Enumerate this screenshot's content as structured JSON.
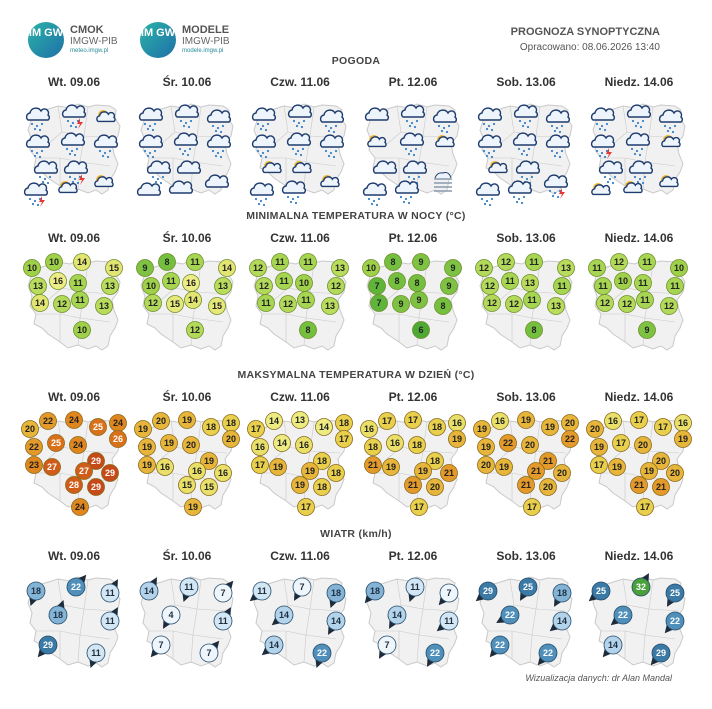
{
  "header": {
    "logo1": {
      "title": "CMOK",
      "sub": "IMGW-PIB",
      "url": "meteo.imgw.pl",
      "mark": "IM GW"
    },
    "logo2": {
      "title": "MODELE",
      "sub": "IMGW-PIB",
      "url": "modele.imgw.pl",
      "mark": "IM GW"
    },
    "title": "PROGNOZA SYNOPTYCZNA",
    "prepared": "Opracowano: 08.06.2026 13:40"
  },
  "days": [
    "Wt. 09.06",
    "Śr. 10.06",
    "Czw. 11.06",
    "Pt. 12.06",
    "Sob. 13.06",
    "Niedz. 14.06"
  ],
  "sections": {
    "weather": "POGODA",
    "tmin": "MINIMALNA TEMPERATURA W NOCY (°C)",
    "tmax": "MAKSYMALNA TEMPERATURA W DZIEŃ (°C)",
    "wind": "WIATR (km/h)"
  },
  "colors": {
    "map_fill": "#f1f1f1",
    "map_border": "#c9c9c9",
    "cloud_fill": "#eef4fb",
    "cloud_stroke": "#1f3c6e",
    "rain": "#3a82c9",
    "sun": "#f3b429",
    "lightning": "#e53935"
  },
  "weather_icons": [
    [
      "cloud-rain",
      "cloud-rain-lightning",
      "partly-cloudy",
      "cloud-rain",
      "cloud-sun-rain",
      "cloud-rain",
      "cloud-rain",
      "cloud-rain-lightning",
      "cloud-rain-lightning",
      "partly-cloudy",
      "cloud-sun"
    ],
    [
      "cloud-rain",
      "cloud-rain",
      "cloud-rain",
      "cloud-rain",
      "cloud-rain",
      "cloud-rain",
      "cloud-rain",
      "cloud",
      "cloud",
      "cloud",
      "cloud"
    ],
    [
      "cloud-rain",
      "cloud-rain",
      "cloud-rain",
      "cloud-rain",
      "cloud-rain",
      "cloud-rain",
      "partly-cloudy",
      "partly-cloudy",
      "cloud-rain",
      "cloud-rain",
      "cloud-sun"
    ],
    [
      "cloud",
      "cloud-rain",
      "cloud-rain",
      "partly-cloudy",
      "cloud-rain",
      "partly-cloudy",
      "cloud",
      "cloud-rain",
      "cloud-rain",
      "cloud-rain",
      "fog"
    ],
    [
      "cloud-rain",
      "cloud-rain",
      "cloud-rain",
      "cloud-rain",
      "cloud-rain",
      "cloud-rain",
      "partly-cloudy",
      "cloud-rain",
      "cloud-rain",
      "cloud-rain",
      "cloud-rain-lightning"
    ],
    [
      "cloud-rain",
      "cloud-rain",
      "cloud-rain",
      "cloud-rain-lightning",
      "cloud-rain",
      "partly-cloudy",
      "cloud-rain",
      "cloud-rain",
      "partly-cloudy",
      "partly-cloudy",
      "cloud-sun"
    ]
  ],
  "tmin": [
    [
      10,
      10,
      14,
      15,
      13,
      16,
      11,
      13,
      14,
      12,
      11,
      13,
      10
    ],
    [
      9,
      8,
      11,
      14,
      10,
      11,
      16,
      13,
      12,
      15,
      14,
      15,
      12
    ],
    [
      12,
      11,
      11,
      13,
      12,
      11,
      10,
      12,
      11,
      12,
      11,
      13,
      8
    ],
    [
      10,
      8,
      9,
      9,
      7,
      8,
      8,
      9,
      7,
      9,
      9,
      8,
      6
    ],
    [
      12,
      12,
      11,
      13,
      12,
      11,
      13,
      11,
      12,
      12,
      11,
      13,
      8
    ],
    [
      11,
      12,
      11,
      10,
      11,
      10,
      11,
      11,
      12,
      12,
      11,
      12,
      9
    ]
  ],
  "tmin_colors": [
    [
      "#9fd04a",
      "#9fd04a",
      "#e2e572",
      "#e2e572",
      "#b9dc5d",
      "#edec87",
      "#a6d552",
      "#b9dc5d",
      "#e2e572",
      "#b3d95a",
      "#a6d552",
      "#b9dc5d",
      "#9fd04a"
    ],
    [
      "#7dc242",
      "#74bf3e",
      "#a6d552",
      "#e2e572",
      "#9fd04a",
      "#a6d552",
      "#edec87",
      "#b9dc5d",
      "#b3d95a",
      "#e6e87a",
      "#e2e572",
      "#e6e87a",
      "#b3d95a"
    ],
    [
      "#b3d95a",
      "#a6d552",
      "#a6d552",
      "#b9dc5d",
      "#b3d95a",
      "#a6d552",
      "#9fd04a",
      "#b3d95a",
      "#a6d552",
      "#b3d95a",
      "#a6d552",
      "#b9dc5d",
      "#74bf3e"
    ],
    [
      "#9fd04a",
      "#74bf3e",
      "#7dc242",
      "#7dc242",
      "#5fb43a",
      "#74bf3e",
      "#74bf3e",
      "#7dc242",
      "#5fb43a",
      "#7dc242",
      "#7dc242",
      "#74bf3e",
      "#4fa935"
    ],
    [
      "#b3d95a",
      "#b3d95a",
      "#a6d552",
      "#b9dc5d",
      "#b3d95a",
      "#a6d552",
      "#b9dc5d",
      "#a6d552",
      "#b3d95a",
      "#b3d95a",
      "#a6d552",
      "#b9dc5d",
      "#74bf3e"
    ],
    [
      "#a6d552",
      "#b3d95a",
      "#a6d552",
      "#9fd04a",
      "#a6d552",
      "#9fd04a",
      "#a6d552",
      "#a6d552",
      "#b3d95a",
      "#b3d95a",
      "#a6d552",
      "#b3d95a",
      "#7dc242"
    ]
  ],
  "tmax": [
    [
      20,
      22,
      24,
      25,
      24,
      22,
      25,
      24,
      26,
      29,
      23,
      27,
      27,
      29,
      28,
      29,
      24
    ],
    [
      19,
      20,
      19,
      18,
      18,
      19,
      19,
      20,
      20,
      19,
      19,
      16,
      16,
      16,
      15,
      15,
      19
    ],
    [
      17,
      14,
      13,
      14,
      18,
      16,
      14,
      16,
      17,
      18,
      17,
      19,
      19,
      18,
      19,
      18,
      17
    ],
    [
      16,
      17,
      17,
      18,
      16,
      18,
      16,
      18,
      19,
      18,
      21,
      19,
      19,
      21,
      21,
      20,
      17
    ],
    [
      19,
      16,
      19,
      19,
      20,
      19,
      22,
      20,
      22,
      21,
      20,
      19,
      21,
      20,
      21,
      20,
      17
    ],
    [
      20,
      16,
      17,
      17,
      16,
      19,
      17,
      20,
      19,
      20,
      17,
      19,
      19,
      20,
      21,
      21,
      17
    ]
  ],
  "wind": [
    [
      18,
      22,
      11,
      18,
      11,
      29,
      11
    ],
    [
      14,
      11,
      7,
      4,
      11,
      7,
      7
    ],
    [
      11,
      7,
      18,
      14,
      14,
      14,
      22
    ],
    [
      18,
      11,
      7,
      14,
      11,
      7,
      22
    ],
    [
      29,
      25,
      18,
      22,
      14,
      22,
      22
    ],
    [
      25,
      32,
      25,
      22,
      22,
      14,
      29
    ]
  ],
  "credit": "Wizualizacja danych: dr Alan Mandal"
}
